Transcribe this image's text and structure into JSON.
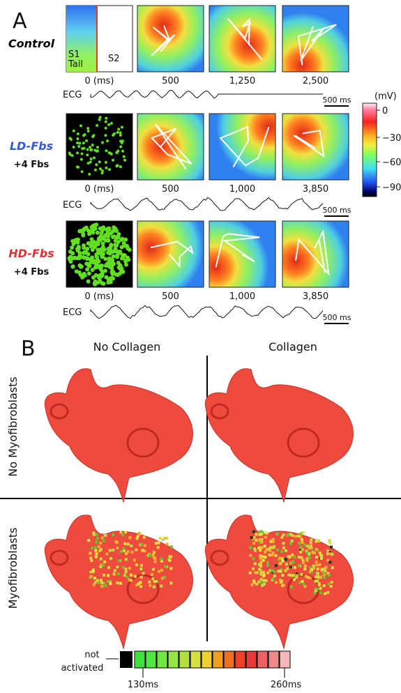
{
  "panel_a": {
    "label": "A",
    "rows": [
      {
        "name": "Control",
        "times": [
          "0 (ms)",
          "500",
          "1,250",
          "2,500"
        ],
        "tile_labels": [
          "S1",
          "Tail",
          "S2"
        ]
      },
      {
        "name": "LD-Fbs",
        "sublabel": "+4 Fbs",
        "times": [
          "0 (ms)",
          "500",
          "1,000",
          "3,850"
        ]
      },
      {
        "name": "HD-Fbs",
        "sublabel": "+4 Fbs",
        "times": [
          "0 (ms)",
          "500",
          "1,000",
          "3,850"
        ]
      }
    ],
    "ecg_label": "ECG",
    "scale_bar": "500 ms",
    "colorbar": {
      "unit": "(mV)",
      "ticks": [
        "0",
        "−30",
        "−60",
        "−90"
      ]
    }
  },
  "panel_b": {
    "label": "B",
    "columns": [
      "No Collagen",
      "Collagen"
    ],
    "rows": [
      "No Myofibroblasts",
      "Myofibroblasts"
    ],
    "legend": {
      "not_activated": [
        "not",
        "activated"
      ],
      "min": "130ms",
      "max": "260ms"
    }
  }
}
